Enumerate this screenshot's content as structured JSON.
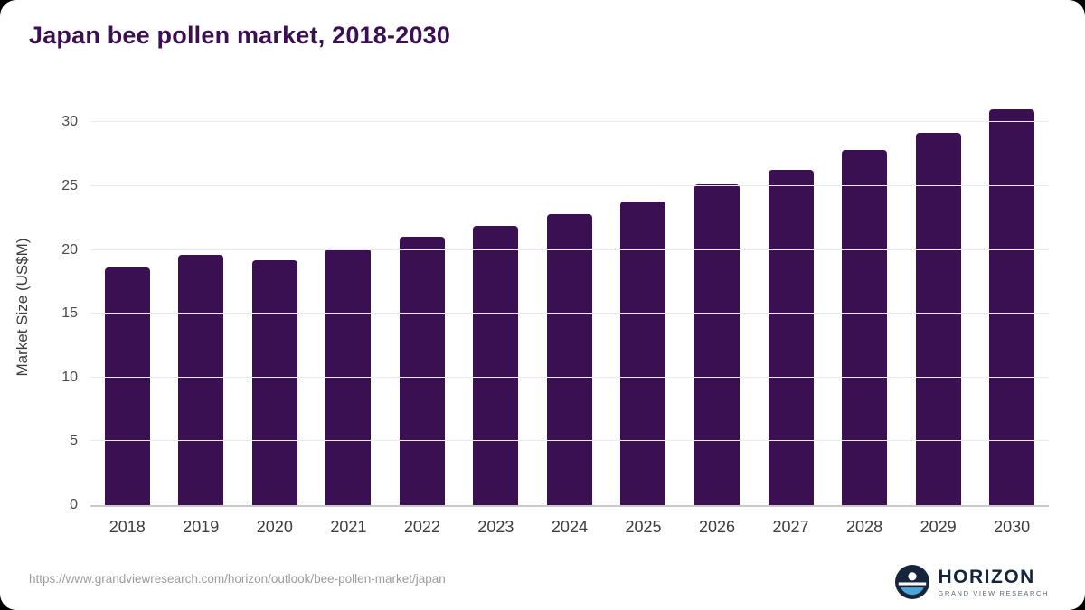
{
  "page": {
    "title": "Japan bee pollen market, 2018-2030",
    "source_url": "https://www.grandviewresearch.com/horizon/outlook/bee-pollen-market/japan"
  },
  "logo": {
    "name": "HORIZON",
    "subtitle": "GRAND VIEW RESEARCH"
  },
  "chart_data": {
    "type": "bar",
    "title": "Japan bee pollen market, 2018-2030",
    "categories": [
      "2018",
      "2019",
      "2020",
      "2021",
      "2022",
      "2023",
      "2024",
      "2025",
      "2026",
      "2027",
      "2028",
      "2029",
      "2030"
    ],
    "values": [
      18.6,
      19.6,
      19.2,
      20.1,
      21.0,
      21.9,
      22.8,
      23.8,
      25.1,
      26.3,
      27.8,
      29.2,
      31.0
    ],
    "xlabel": "",
    "ylabel": "Market Size (US$M)",
    "ylim": [
      0,
      32
    ],
    "yticks": [
      0,
      5,
      10,
      15,
      20,
      25,
      30
    ],
    "grid": true,
    "legend": false,
    "bar_color": "#3b1053"
  }
}
